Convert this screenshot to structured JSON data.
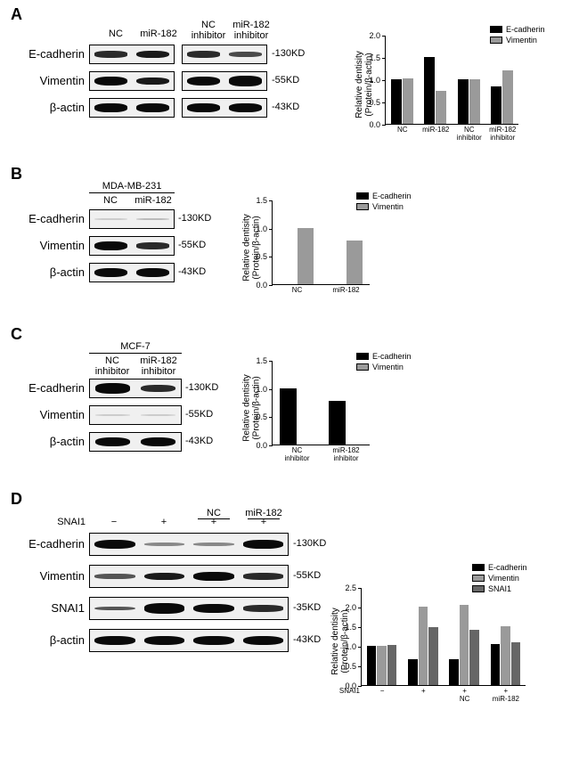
{
  "figure": {
    "colors": {
      "ecadherin": "#000000",
      "vimentin": "#9a9a9a",
      "snai1": "#666666",
      "band_dark": "#1a1a1a",
      "band_mid": "#555555",
      "band_light": "#999999",
      "blot_bg": "#eeeeee",
      "background": "#ffffff"
    },
    "panelA": {
      "label": "A",
      "lanes": [
        "NC",
        "miR-182",
        "NC\ninhibitor",
        "miR-182\ninhibitor"
      ],
      "rows": [
        {
          "name": "E-cadherin",
          "kd": "-130KD",
          "bands": [
            [
              0.45,
              "#2a2a2a"
            ],
            [
              0.55,
              "#1a1a1a"
            ],
            [
              0.45,
              "#2a2a2a"
            ],
            [
              0.35,
              "#4a4a4a"
            ]
          ],
          "bands2": [
            [
              0.45,
              "#2a2a2a"
            ],
            [
              0.35,
              "#4a4a4a"
            ]
          ]
        },
        {
          "name": "Vimentin",
          "kd": "-55KD",
          "bands": [
            [
              0.65,
              "#0a0a0a"
            ],
            [
              0.55,
              "#1a1a1a"
            ],
            [
              0.65,
              "#0a0a0a"
            ],
            [
              0.7,
              "#0a0a0a"
            ]
          ],
          "bands2": [
            [
              0.65,
              "#0a0a0a"
            ],
            [
              0.7,
              "#0a0a0a"
            ]
          ]
        },
        {
          "name": "β-actin",
          "kd": "-43KD",
          "bands": [
            [
              0.6,
              "#0a0a0a"
            ],
            [
              0.6,
              "#0a0a0a"
            ],
            [
              0.6,
              "#0a0a0a"
            ],
            [
              0.6,
              "#0a0a0a"
            ]
          ],
          "bands2": [
            [
              0.6,
              "#0a0a0a"
            ],
            [
              0.6,
              "#0a0a0a"
            ]
          ]
        }
      ],
      "chart": {
        "type": "bar",
        "ylabel": "Relative dentisity\n(Protein/β-actin)",
        "ylim": [
          0,
          2.0
        ],
        "yticks": [
          0.0,
          0.5,
          1.0,
          1.5,
          2.0
        ],
        "categories": [
          "NC",
          "miR-182",
          "NC\ninhibitor",
          "miR-182\ninhibitor"
        ],
        "series": [
          {
            "name": "E-cadherin",
            "color": "#000000",
            "values": [
              1.0,
              1.5,
              1.0,
              0.85
            ]
          },
          {
            "name": "Vimentin",
            "color": "#9a9a9a",
            "values": [
              1.02,
              0.75,
              1.0,
              1.2
            ]
          }
        ],
        "bar_width": 0.35
      }
    },
    "panelB": {
      "label": "B",
      "cell_line": "MDA-MB-231",
      "lanes": [
        "NC",
        "miR-182"
      ],
      "rows": [
        {
          "name": "E-cadherin",
          "kd": "-130KD",
          "bands": [
            [
              0.08,
              "#cccccc"
            ],
            [
              0.12,
              "#bbbbbb"
            ]
          ]
        },
        {
          "name": "Vimentin",
          "kd": "-55KD",
          "bands": [
            [
              0.6,
              "#0a0a0a"
            ],
            [
              0.45,
              "#2a2a2a"
            ]
          ]
        },
        {
          "name": "β-actin",
          "kd": "-43KD",
          "bands": [
            [
              0.65,
              "#0a0a0a"
            ],
            [
              0.65,
              "#0a0a0a"
            ]
          ]
        }
      ],
      "chart": {
        "type": "bar",
        "ylabel": "Relative dentisity\n(Protein/β-actin)",
        "ylim": [
          0,
          1.5
        ],
        "yticks": [
          0.0,
          0.5,
          1.0,
          1.5
        ],
        "categories": [
          "NC",
          "miR-182"
        ],
        "series": [
          {
            "name": "E-cadherin",
            "color": "#000000",
            "values": [
              0,
              0
            ]
          },
          {
            "name": "Vimentin",
            "color": "#9a9a9a",
            "values": [
              1.0,
              0.77
            ]
          }
        ],
        "bar_width": 0.35
      }
    },
    "panelC": {
      "label": "C",
      "cell_line": "MCF-7",
      "lanes": [
        "NC\ninhibitor",
        "miR-182\ninhibitor"
      ],
      "rows": [
        {
          "name": "E-cadherin",
          "kd": "-130KD",
          "bands": [
            [
              0.7,
              "#0a0a0a"
            ],
            [
              0.5,
              "#2a2a2a"
            ]
          ]
        },
        {
          "name": "Vimentin",
          "kd": "-55KD",
          "bands": [
            [
              0.1,
              "#cccccc"
            ],
            [
              0.1,
              "#cccccc"
            ]
          ]
        },
        {
          "name": "β-actin",
          "kd": "-43KD",
          "bands": [
            [
              0.65,
              "#0a0a0a"
            ],
            [
              0.65,
              "#0a0a0a"
            ]
          ]
        }
      ],
      "chart": {
        "type": "bar",
        "ylabel": "Relative dentisity\n(Protein/β-actin)",
        "ylim": [
          0,
          1.5
        ],
        "yticks": [
          0.0,
          0.5,
          1.0,
          1.5
        ],
        "categories": [
          "NC\ninhibitor",
          "miR-182\ninhibitor"
        ],
        "series": [
          {
            "name": "E-cadherin",
            "color": "#000000",
            "values": [
              1.0,
              0.78
            ]
          },
          {
            "name": "Vimentin",
            "color": "#9a9a9a",
            "values": [
              0,
              0
            ]
          }
        ],
        "bar_width": 0.35
      }
    },
    "panelD": {
      "label": "D",
      "snai1_row": [
        "−",
        "+",
        "NC",
        "miR-182"
      ],
      "snai1_label": "SNAI1",
      "rows": [
        {
          "name": "E-cadherin",
          "kd": "-130KD",
          "bands": [
            [
              0.65,
              "#0a0a0a"
            ],
            [
              0.25,
              "#888888"
            ],
            [
              0.25,
              "#888888"
            ],
            [
              0.6,
              "#0a0a0a"
            ]
          ]
        },
        {
          "name": "Vimentin",
          "kd": "-55KD",
          "bands": [
            [
              0.35,
              "#555555"
            ],
            [
              0.55,
              "#1a1a1a"
            ],
            [
              0.6,
              "#0a0a0a"
            ],
            [
              0.45,
              "#2a2a2a"
            ]
          ]
        },
        {
          "name": "SNAI1",
          "kd": "-35KD",
          "bands": [
            [
              0.3,
              "#555555"
            ],
            [
              0.7,
              "#0a0a0a"
            ],
            [
              0.65,
              "#0a0a0a"
            ],
            [
              0.45,
              "#2a2a2a"
            ]
          ]
        },
        {
          "name": "β-actin",
          "kd": "-43KD",
          "bands": [
            [
              0.65,
              "#0a0a0a"
            ],
            [
              0.65,
              "#0a0a0a"
            ],
            [
              0.65,
              "#0a0a0a"
            ],
            [
              0.65,
              "#0a0a0a"
            ]
          ]
        }
      ],
      "chart": {
        "type": "bar",
        "ylabel": "Relative dentisity\n(Protein/β-actin)",
        "ylim": [
          0,
          2.5
        ],
        "yticks": [
          0.0,
          0.5,
          1.0,
          1.5,
          2.0,
          2.5
        ],
        "categories": [
          "−",
          "+",
          "+\nNC",
          "+\nmiR-182"
        ],
        "snai_label": "SNAI1",
        "series": [
          {
            "name": "E-cadherin",
            "color": "#000000",
            "values": [
              1.0,
              0.67,
              0.67,
              1.05
            ]
          },
          {
            "name": "Vimentin",
            "color": "#9a9a9a",
            "values": [
              1.0,
              2.0,
              2.05,
              1.5
            ]
          },
          {
            "name": "SNAI1",
            "color": "#666666",
            "values": [
              1.02,
              1.48,
              1.4,
              1.1
            ]
          }
        ],
        "bar_width": 0.25
      }
    }
  }
}
